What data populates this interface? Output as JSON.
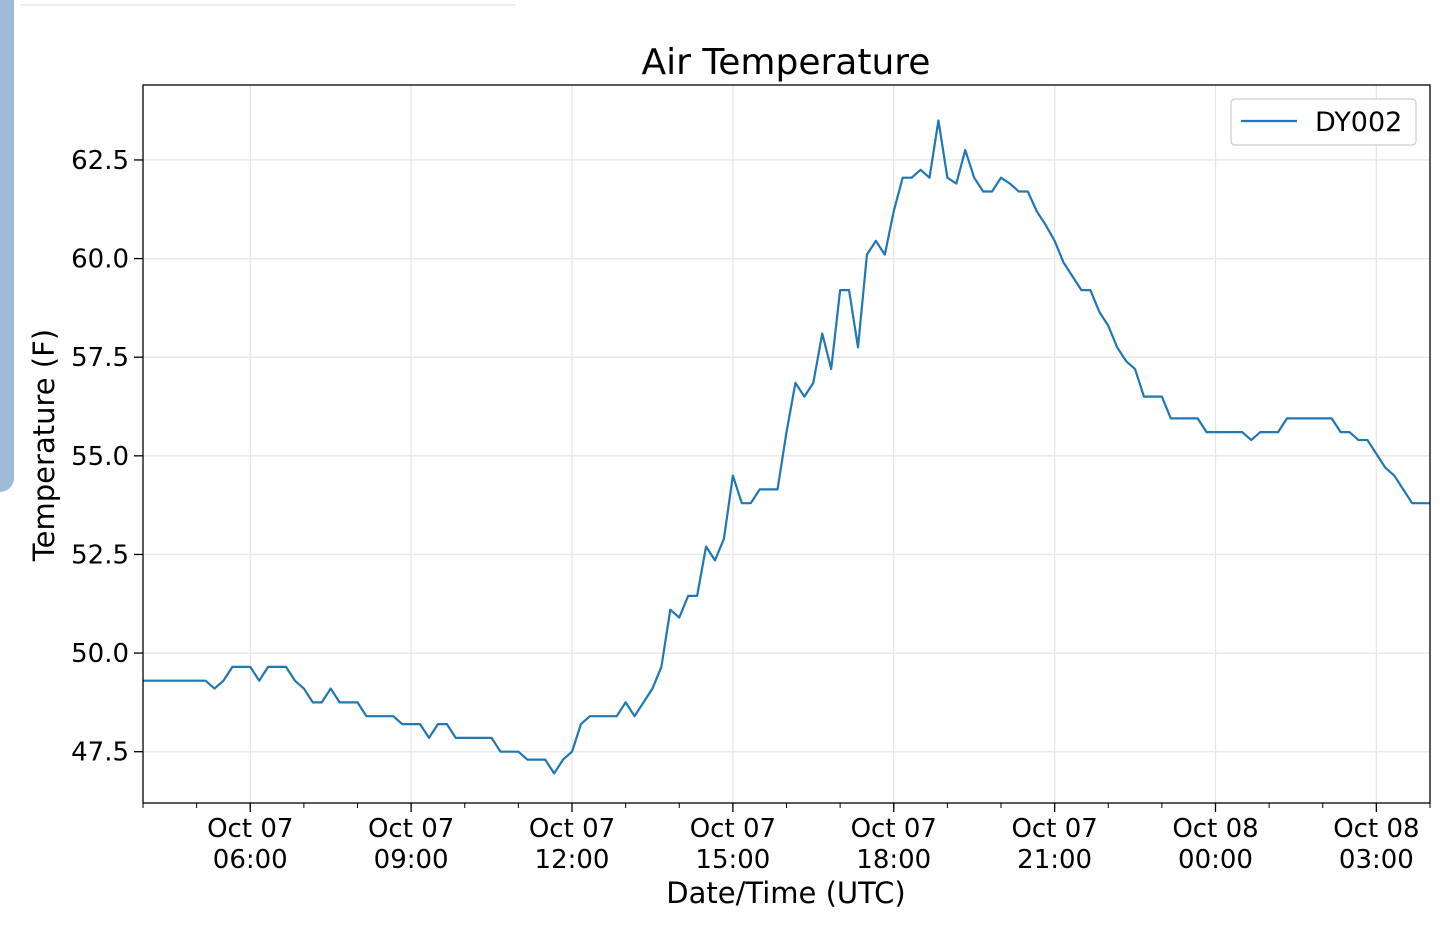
{
  "chart_data": {
    "type": "line",
    "title": "Air Temperature",
    "xlabel": "Date/Time (UTC)",
    "ylabel": "Temperature (F)",
    "x_unit": "hours, UTC",
    "x_start": "2019-10-07 04:00",
    "x_end": "2019-10-08 04:00",
    "xlim": [
      "2019-10-07 04:00",
      "2019-10-08 04:00"
    ],
    "ylim": [
      46.2,
      64.4
    ],
    "grid": true,
    "legend_position": "upper-right",
    "x_ticks": [
      {
        "line1": "Oct 07",
        "line2": "06:00",
        "at": "2019-10-07 06:00"
      },
      {
        "line1": "Oct 07",
        "line2": "09:00",
        "at": "2019-10-07 09:00"
      },
      {
        "line1": "Oct 07",
        "line2": "12:00",
        "at": "2019-10-07 12:00"
      },
      {
        "line1": "Oct 07",
        "line2": "15:00",
        "at": "2019-10-07 15:00"
      },
      {
        "line1": "Oct 07",
        "line2": "18:00",
        "at": "2019-10-07 18:00"
      },
      {
        "line1": "Oct 07",
        "line2": "21:00",
        "at": "2019-10-07 21:00"
      },
      {
        "line1": "Oct 08",
        "line2": "00:00",
        "at": "2019-10-08 00:00"
      },
      {
        "line1": "Oct 08",
        "line2": "03:00",
        "at": "2019-10-08 03:00"
      }
    ],
    "y_ticks": [
      47.5,
      50.0,
      52.5,
      55.0,
      57.5,
      60.0,
      62.5
    ],
    "series": [
      {
        "name": "DY002",
        "color": "#1f77b4",
        "points": [
          [
            "2019-10-07 04:00",
            49.3
          ],
          [
            "2019-10-07 04:10",
            49.3
          ],
          [
            "2019-10-07 04:20",
            49.3
          ],
          [
            "2019-10-07 04:30",
            49.3
          ],
          [
            "2019-10-07 04:40",
            49.3
          ],
          [
            "2019-10-07 04:50",
            49.3
          ],
          [
            "2019-10-07 05:00",
            49.3
          ],
          [
            "2019-10-07 05:10",
            49.3
          ],
          [
            "2019-10-07 05:20",
            49.1
          ],
          [
            "2019-10-07 05:30",
            49.3
          ],
          [
            "2019-10-07 05:40",
            49.65
          ],
          [
            "2019-10-07 05:50",
            49.65
          ],
          [
            "2019-10-07 06:00",
            49.65
          ],
          [
            "2019-10-07 06:10",
            49.3
          ],
          [
            "2019-10-07 06:20",
            49.65
          ],
          [
            "2019-10-07 06:30",
            49.65
          ],
          [
            "2019-10-07 06:40",
            49.65
          ],
          [
            "2019-10-07 06:50",
            49.3
          ],
          [
            "2019-10-07 07:00",
            49.1
          ],
          [
            "2019-10-07 07:10",
            48.75
          ],
          [
            "2019-10-07 07:20",
            48.75
          ],
          [
            "2019-10-07 07:30",
            49.1
          ],
          [
            "2019-10-07 07:40",
            48.75
          ],
          [
            "2019-10-07 07:50",
            48.75
          ],
          [
            "2019-10-07 08:00",
            48.75
          ],
          [
            "2019-10-07 08:10",
            48.4
          ],
          [
            "2019-10-07 08:20",
            48.4
          ],
          [
            "2019-10-07 08:30",
            48.4
          ],
          [
            "2019-10-07 08:40",
            48.4
          ],
          [
            "2019-10-07 08:50",
            48.2
          ],
          [
            "2019-10-07 09:00",
            48.2
          ],
          [
            "2019-10-07 09:10",
            48.2
          ],
          [
            "2019-10-07 09:20",
            47.85
          ],
          [
            "2019-10-07 09:30",
            48.2
          ],
          [
            "2019-10-07 09:40",
            48.2
          ],
          [
            "2019-10-07 09:50",
            47.85
          ],
          [
            "2019-10-07 10:00",
            47.85
          ],
          [
            "2019-10-07 10:10",
            47.85
          ],
          [
            "2019-10-07 10:20",
            47.85
          ],
          [
            "2019-10-07 10:30",
            47.85
          ],
          [
            "2019-10-07 10:40",
            47.5
          ],
          [
            "2019-10-07 10:50",
            47.5
          ],
          [
            "2019-10-07 11:00",
            47.5
          ],
          [
            "2019-10-07 11:10",
            47.3
          ],
          [
            "2019-10-07 11:20",
            47.3
          ],
          [
            "2019-10-07 11:30",
            47.3
          ],
          [
            "2019-10-07 11:40",
            46.95
          ],
          [
            "2019-10-07 11:50",
            47.3
          ],
          [
            "2019-10-07 12:00",
            47.5
          ],
          [
            "2019-10-07 12:10",
            48.2
          ],
          [
            "2019-10-07 12:20",
            48.4
          ],
          [
            "2019-10-07 12:30",
            48.4
          ],
          [
            "2019-10-07 12:40",
            48.4
          ],
          [
            "2019-10-07 12:50",
            48.4
          ],
          [
            "2019-10-07 13:00",
            48.75
          ],
          [
            "2019-10-07 13:10",
            48.4
          ],
          [
            "2019-10-07 13:20",
            48.75
          ],
          [
            "2019-10-07 13:30",
            49.1
          ],
          [
            "2019-10-07 13:40",
            49.65
          ],
          [
            "2019-10-07 13:50",
            51.1
          ],
          [
            "2019-10-07 14:00",
            50.9
          ],
          [
            "2019-10-07 14:10",
            51.45
          ],
          [
            "2019-10-07 14:20",
            51.45
          ],
          [
            "2019-10-07 14:30",
            52.7
          ],
          [
            "2019-10-07 14:40",
            52.35
          ],
          [
            "2019-10-07 14:50",
            52.9
          ],
          [
            "2019-10-07 15:00",
            54.5
          ],
          [
            "2019-10-07 15:10",
            53.8
          ],
          [
            "2019-10-07 15:20",
            53.8
          ],
          [
            "2019-10-07 15:30",
            54.15
          ],
          [
            "2019-10-07 15:40",
            54.15
          ],
          [
            "2019-10-07 15:50",
            54.15
          ],
          [
            "2019-10-07 16:00",
            55.6
          ],
          [
            "2019-10-07 16:10",
            56.85
          ],
          [
            "2019-10-07 16:20",
            56.5
          ],
          [
            "2019-10-07 16:30",
            56.85
          ],
          [
            "2019-10-07 16:40",
            58.1
          ],
          [
            "2019-10-07 16:50",
            57.2
          ],
          [
            "2019-10-07 17:00",
            59.2
          ],
          [
            "2019-10-07 17:10",
            59.2
          ],
          [
            "2019-10-07 17:20",
            57.75
          ],
          [
            "2019-10-07 17:30",
            60.1
          ],
          [
            "2019-10-07 17:40",
            60.45
          ],
          [
            "2019-10-07 17:50",
            60.1
          ],
          [
            "2019-10-07 18:00",
            61.2
          ],
          [
            "2019-10-07 18:10",
            62.05
          ],
          [
            "2019-10-07 18:20",
            62.05
          ],
          [
            "2019-10-07 18:30",
            62.25
          ],
          [
            "2019-10-07 18:40",
            62.05
          ],
          [
            "2019-10-07 18:50",
            63.5
          ],
          [
            "2019-10-07 19:00",
            62.05
          ],
          [
            "2019-10-07 19:10",
            61.9
          ],
          [
            "2019-10-07 19:20",
            62.75
          ],
          [
            "2019-10-07 19:30",
            62.05
          ],
          [
            "2019-10-07 19:40",
            61.7
          ],
          [
            "2019-10-07 19:50",
            61.7
          ],
          [
            "2019-10-07 20:00",
            62.05
          ],
          [
            "2019-10-07 20:10",
            61.9
          ],
          [
            "2019-10-07 20:20",
            61.7
          ],
          [
            "2019-10-07 20:30",
            61.7
          ],
          [
            "2019-10-07 20:40",
            61.2
          ],
          [
            "2019-10-07 20:50",
            60.85
          ],
          [
            "2019-10-07 21:00",
            60.45
          ],
          [
            "2019-10-07 21:10",
            59.9
          ],
          [
            "2019-10-07 21:20",
            59.55
          ],
          [
            "2019-10-07 21:30",
            59.2
          ],
          [
            "2019-10-07 21:40",
            59.2
          ],
          [
            "2019-10-07 21:50",
            58.65
          ],
          [
            "2019-10-07 22:00",
            58.3
          ],
          [
            "2019-10-07 22:10",
            57.75
          ],
          [
            "2019-10-07 22:20",
            57.4
          ],
          [
            "2019-10-07 22:30",
            57.2
          ],
          [
            "2019-10-07 22:40",
            56.5
          ],
          [
            "2019-10-07 22:50",
            56.5
          ],
          [
            "2019-10-07 23:00",
            56.5
          ],
          [
            "2019-10-07 23:10",
            55.95
          ],
          [
            "2019-10-07 23:20",
            55.95
          ],
          [
            "2019-10-07 23:30",
            55.95
          ],
          [
            "2019-10-07 23:40",
            55.95
          ],
          [
            "2019-10-07 23:50",
            55.6
          ],
          [
            "2019-10-08 00:00",
            55.6
          ],
          [
            "2019-10-08 00:10",
            55.6
          ],
          [
            "2019-10-08 00:20",
            55.6
          ],
          [
            "2019-10-08 00:30",
            55.6
          ],
          [
            "2019-10-08 00:40",
            55.4
          ],
          [
            "2019-10-08 00:50",
            55.6
          ],
          [
            "2019-10-08 01:00",
            55.6
          ],
          [
            "2019-10-08 01:10",
            55.6
          ],
          [
            "2019-10-08 01:20",
            55.95
          ],
          [
            "2019-10-08 01:30",
            55.95
          ],
          [
            "2019-10-08 01:40",
            55.95
          ],
          [
            "2019-10-08 01:50",
            55.95
          ],
          [
            "2019-10-08 02:00",
            55.95
          ],
          [
            "2019-10-08 02:10",
            55.95
          ],
          [
            "2019-10-08 02:20",
            55.6
          ],
          [
            "2019-10-08 02:30",
            55.6
          ],
          [
            "2019-10-08 02:40",
            55.4
          ],
          [
            "2019-10-08 02:50",
            55.4
          ],
          [
            "2019-10-08 03:00",
            55.05
          ],
          [
            "2019-10-08 03:10",
            54.7
          ],
          [
            "2019-10-08 03:20",
            54.5
          ],
          [
            "2019-10-08 03:30",
            54.15
          ],
          [
            "2019-10-08 03:40",
            53.8
          ],
          [
            "2019-10-08 03:50",
            53.8
          ],
          [
            "2019-10-08 04:00",
            53.8
          ]
        ]
      }
    ]
  }
}
